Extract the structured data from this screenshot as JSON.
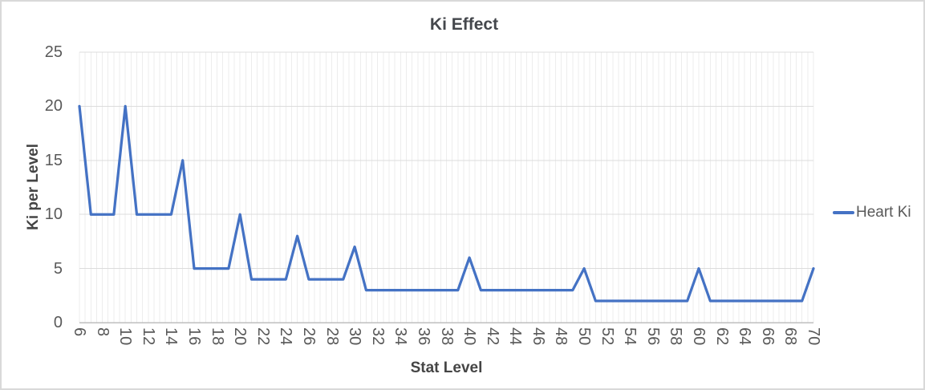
{
  "window": {
    "background": "#FFFFFF",
    "border_color": "#D9D9D9"
  },
  "chart_data": {
    "type": "line",
    "title": "Ki Effect",
    "xlabel": "Stat Level",
    "ylabel": "Ki per Level",
    "x": [
      6,
      7,
      8,
      9,
      10,
      11,
      12,
      13,
      14,
      15,
      16,
      17,
      18,
      19,
      20,
      21,
      22,
      23,
      24,
      25,
      26,
      27,
      28,
      29,
      30,
      31,
      32,
      33,
      34,
      35,
      36,
      37,
      38,
      39,
      40,
      41,
      42,
      43,
      44,
      45,
      46,
      47,
      48,
      49,
      50,
      51,
      52,
      53,
      54,
      55,
      56,
      57,
      58,
      59,
      60,
      61,
      62,
      63,
      64,
      65,
      66,
      67,
      68,
      69,
      70
    ],
    "series": [
      {
        "name": "Heart Ki",
        "color": "#4472C4",
        "values": [
          20,
          10,
          10,
          10,
          20,
          10,
          10,
          10,
          10,
          15,
          5,
          5,
          5,
          5,
          10,
          4,
          4,
          4,
          4,
          8,
          4,
          4,
          4,
          4,
          7,
          3,
          3,
          3,
          3,
          3,
          3,
          3,
          3,
          3,
          6,
          3,
          3,
          3,
          3,
          3,
          3,
          3,
          3,
          3,
          5,
          2,
          2,
          2,
          2,
          2,
          2,
          2,
          2,
          2,
          5,
          2,
          2,
          2,
          2,
          2,
          2,
          2,
          2,
          2,
          5
        ]
      }
    ],
    "xlim": [
      6,
      70
    ],
    "ylim": [
      0,
      25
    ],
    "xticks": [
      6,
      8,
      10,
      12,
      14,
      16,
      18,
      20,
      22,
      24,
      26,
      28,
      30,
      32,
      34,
      36,
      38,
      40,
      42,
      44,
      46,
      48,
      50,
      52,
      54,
      56,
      58,
      60,
      62,
      64,
      66,
      68,
      70
    ],
    "yticks": [
      0,
      5,
      10,
      15,
      20,
      25
    ],
    "grid": {
      "horizontal_major_step": 5,
      "vertical_minor_step": 0.5,
      "h_color": "#DCDCDC",
      "v_color": "#EDEDED",
      "axis_color": "#BFBFBF",
      "grid_on": true
    },
    "legend": {
      "position": "right",
      "entries": [
        {
          "label": "Heart Ki",
          "color": "#4472C4"
        }
      ]
    },
    "tick_label_color": "#595959",
    "title_color": "#44474c"
  }
}
